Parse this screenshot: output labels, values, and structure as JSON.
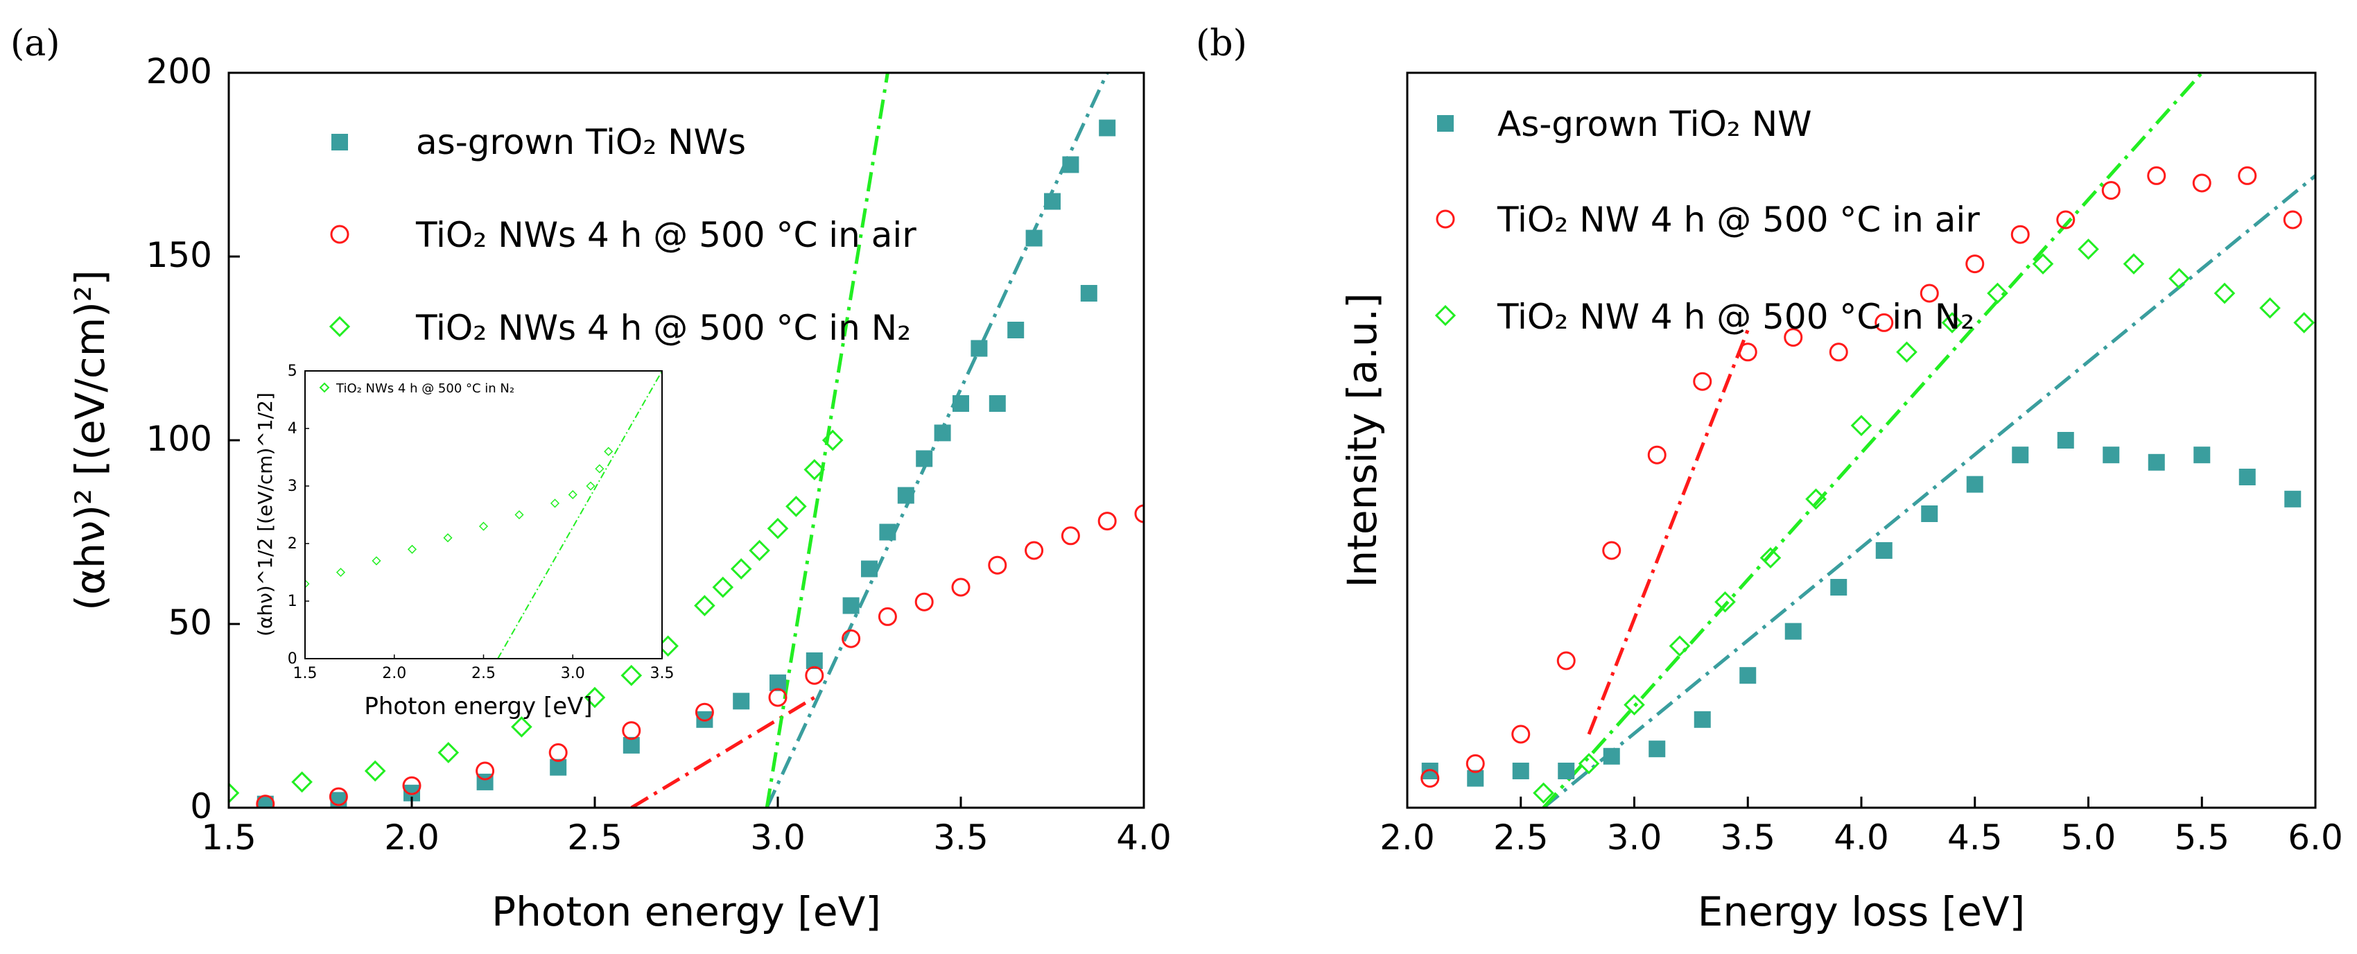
{
  "chart_data": [
    {
      "panel": "(a)",
      "type": "scatter",
      "xlabel": "Photon energy [eV]",
      "ylabel": "(αhν)² [(eV/cm)²]",
      "xlim": [
        1.5,
        4.0
      ],
      "ylim": [
        0,
        200
      ],
      "xticks": [
        "1.5",
        "2.0",
        "2.5",
        "3.0",
        "3.5",
        "4.0"
      ],
      "yticks": [
        "0",
        "50",
        "100",
        "150",
        "200"
      ],
      "legend": [
        {
          "label": "as-grown TiO₂ NWs",
          "marker": "square",
          "color": "#3a9e9e"
        },
        {
          "label": "TiO₂ NWs 4 h @ 500 °C in air",
          "marker": "circle",
          "color": "#ff1a1a"
        },
        {
          "label": "TiO₂ NWs 4 h @ 500 °C in N₂",
          "marker": "diamond",
          "color": "#22ee22"
        }
      ],
      "series": [
        {
          "name": "as-grown TiO₂ NWs",
          "color": "#3a9e9e",
          "marker": "square",
          "x": [
            1.6,
            1.8,
            2.0,
            2.2,
            2.4,
            2.6,
            2.8,
            2.9,
            3.0,
            3.1,
            3.2,
            3.25,
            3.3,
            3.35,
            3.4,
            3.45,
            3.5,
            3.55,
            3.6,
            3.65,
            3.7,
            3.75,
            3.8,
            3.85,
            3.9
          ],
          "y": [
            1,
            2,
            4,
            7,
            11,
            17,
            24,
            29,
            34,
            40,
            55,
            65,
            75,
            85,
            95,
            102,
            110,
            125,
            110,
            130,
            155,
            165,
            175,
            140,
            185
          ],
          "fit_line": {
            "x": [
              2.97,
              3.9
            ],
            "y": [
              0,
              200
            ]
          }
        },
        {
          "name": "TiO₂ NWs 4 h @ 500 °C in air",
          "color": "#ff1a1a",
          "marker": "circle",
          "x": [
            1.6,
            1.8,
            2.0,
            2.2,
            2.4,
            2.6,
            2.8,
            3.0,
            3.1,
            3.2,
            3.3,
            3.4,
            3.5,
            3.6,
            3.7,
            3.8,
            3.9,
            4.0
          ],
          "y": [
            1,
            3,
            6,
            10,
            15,
            21,
            26,
            30,
            36,
            46,
            52,
            56,
            60,
            66,
            70,
            74,
            78,
            80
          ],
          "fit_line": {
            "x": [
              2.6,
              3.1
            ],
            "y": [
              0,
              30
            ]
          }
        },
        {
          "name": "TiO₂ NWs 4 h @ 500 °C in N₂",
          "color": "#22ee22",
          "marker": "diamond",
          "x": [
            1.5,
            1.7,
            1.9,
            2.1,
            2.3,
            2.5,
            2.6,
            2.7,
            2.8,
            2.85,
            2.9,
            2.95,
            3.0,
            3.05,
            3.1,
            3.15
          ],
          "y": [
            4,
            7,
            10,
            15,
            22,
            30,
            36,
            44,
            55,
            60,
            65,
            70,
            76,
            82,
            92,
            100
          ],
          "fit_line": {
            "x": [
              2.97,
              3.3
            ],
            "y": [
              0,
              200
            ]
          }
        }
      ],
      "inset": {
        "type": "scatter",
        "xlabel": "Photon energy [eV]",
        "ylabel": "(αhν)^1/2 [(eV/cm)^1/2]",
        "xlim": [
          1.5,
          3.5
        ],
        "ylim": [
          0,
          5
        ],
        "xticks": [
          "1.5",
          "2.0",
          "2.5",
          "3.0",
          "3.5"
        ],
        "yticks": [
          "0",
          "1",
          "2",
          "3",
          "4",
          "5"
        ],
        "legend": "TiO₂ NWs 4 h @ 500 °C in N₂",
        "series": {
          "color": "#22ee22",
          "marker": "diamond",
          "x": [
            1.5,
            1.7,
            1.9,
            2.1,
            2.3,
            2.5,
            2.7,
            2.9,
            3.0,
            3.1,
            3.15,
            3.2
          ],
          "y": [
            1.3,
            1.5,
            1.7,
            1.9,
            2.1,
            2.3,
            2.5,
            2.7,
            2.85,
            3.0,
            3.3,
            3.6
          ],
          "fit_line": {
            "x": [
              2.58,
              3.5
            ],
            "y": [
              0,
              5
            ]
          }
        }
      }
    },
    {
      "panel": "(b)",
      "type": "scatter",
      "xlabel": "Energy loss [eV]",
      "ylabel": "Intensity [a.u.]",
      "xlim": [
        2.0,
        6.0
      ],
      "ylim": [
        0,
        100
      ],
      "xticks": [
        "2.0",
        "2.5",
        "3.0",
        "3.5",
        "4.0",
        "4.5",
        "5.0",
        "5.5",
        "6.0"
      ],
      "legend": [
        {
          "label": "As-grown TiO₂ NW",
          "marker": "square",
          "color": "#3a9e9e"
        },
        {
          "label": "TiO₂ NW 4 h @ 500 °C in air",
          "marker": "circle",
          "color": "#ff1a1a"
        },
        {
          "label": "TiO₂ NW 4 h @ 500 °C in N₂",
          "marker": "diamond",
          "color": "#22ee22"
        }
      ],
      "series": [
        {
          "name": "As-grown TiO₂ NW",
          "color": "#3a9e9e",
          "marker": "square",
          "x": [
            2.1,
            2.3,
            2.5,
            2.7,
            2.9,
            3.1,
            3.3,
            3.5,
            3.7,
            3.9,
            4.1,
            4.3,
            4.5,
            4.7,
            4.9,
            5.1,
            5.3,
            5.5,
            5.7,
            5.9
          ],
          "y": [
            5,
            4,
            5,
            5,
            7,
            8,
            12,
            18,
            24,
            30,
            35,
            40,
            44,
            48,
            50,
            48,
            47,
            48,
            45,
            42
          ],
          "fit_line": {
            "x": [
              2.6,
              6.0
            ],
            "y": [
              0,
              86
            ]
          }
        },
        {
          "name": "TiO₂ NW 4 h @ 500 °C in air",
          "color": "#ff1a1a",
          "marker": "circle",
          "x": [
            2.1,
            2.3,
            2.5,
            2.7,
            2.9,
            3.1,
            3.3,
            3.5,
            3.7,
            3.9,
            4.1,
            4.3,
            4.5,
            4.7,
            4.9,
            5.1,
            5.3,
            5.5,
            5.7,
            5.9
          ],
          "y": [
            4,
            6,
            10,
            20,
            35,
            48,
            58,
            62,
            64,
            62,
            66,
            70,
            74,
            78,
            80,
            84,
            86,
            85,
            86,
            80
          ],
          "fit_line": {
            "x": [
              2.8,
              3.5
            ],
            "y": [
              10,
              65
            ]
          }
        },
        {
          "name": "TiO₂ NW 4 h @ 500 °C in N₂",
          "color": "#22ee22",
          "marker": "diamond",
          "x": [
            2.6,
            2.8,
            3.0,
            3.2,
            3.4,
            3.6,
            3.8,
            4.0,
            4.2,
            4.4,
            4.6,
            4.8,
            5.0,
            5.2,
            5.4,
            5.6,
            5.8,
            5.95
          ],
          "y": [
            2,
            6,
            14,
            22,
            28,
            34,
            42,
            52,
            62,
            66,
            70,
            74,
            76,
            74,
            72,
            70,
            68,
            66
          ],
          "fit_line": {
            "x": [
              2.6,
              5.5
            ],
            "y": [
              0,
              100
            ]
          }
        }
      ]
    }
  ]
}
